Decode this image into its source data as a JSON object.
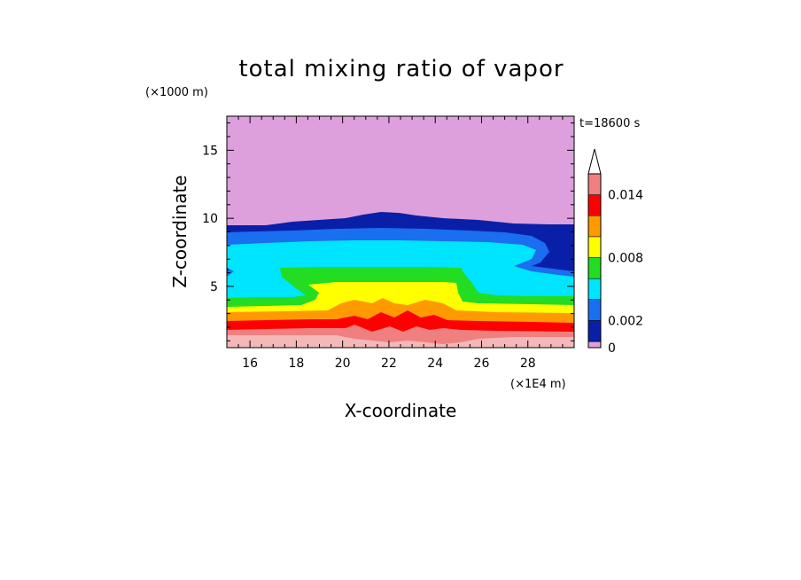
{
  "chart_data": {
    "type": "heatmap",
    "title": "total mixing ratio of vapor",
    "time_label": "t=18600 s",
    "xlabel": "X-coordinate",
    "ylabel": "Z-coordinate",
    "x_unit": "(×1E4 m)",
    "y_unit": "(×1000 m)",
    "xlim": [
      15,
      30
    ],
    "ylim": [
      0.5,
      17.5
    ],
    "x_ticks": [
      16,
      18,
      20,
      22,
      24,
      26,
      28
    ],
    "y_ticks": [
      5,
      10,
      15
    ],
    "colorbar": {
      "levels": [
        0,
        0.002,
        0.004,
        0.006,
        0.008,
        0.01,
        0.012,
        0.014,
        0.016
      ],
      "labels": [
        "0",
        "0.002",
        "0.008",
        "0.014"
      ],
      "label_values": [
        0,
        0.002,
        0.008,
        0.014
      ],
      "colors": [
        "#0a1fa8",
        "#1a6ef0",
        "#00e5ff",
        "#22dd22",
        "#ffff00",
        "#ff9900",
        "#ff0000",
        "#f08080",
        "#f4b8b8"
      ],
      "over_color": "#ffffff",
      "under_color": "#dda0dd"
    },
    "layers": [
      {
        "name": "",
        "color": "#dda0dd",
        "z_top": 17.5
      },
      {
        "name": "",
        "color": "#0a1fa8",
        "z_top": 9.6
      },
      {
        "name": "",
        "color": "#1a6ef0",
        "z_top": 9.0
      },
      {
        "name": "",
        "color": "#00e5ff",
        "z_top": 7.8
      },
      {
        "name": "",
        "color": "#22dd22",
        "z_top": 4.2
      },
      {
        "name": "",
        "color": "#ffff00",
        "z_top": 3.5
      },
      {
        "name": "",
        "color": "#ff9900",
        "z_top": 3.0
      },
      {
        "name": "",
        "color": "#ff0000",
        "z_top": 2.5
      },
      {
        "name": "",
        "color": "#f08080",
        "z_top": 1.8
      },
      {
        "name": "",
        "color": "#f4b8b8",
        "z_top": 1.2
      }
    ]
  }
}
